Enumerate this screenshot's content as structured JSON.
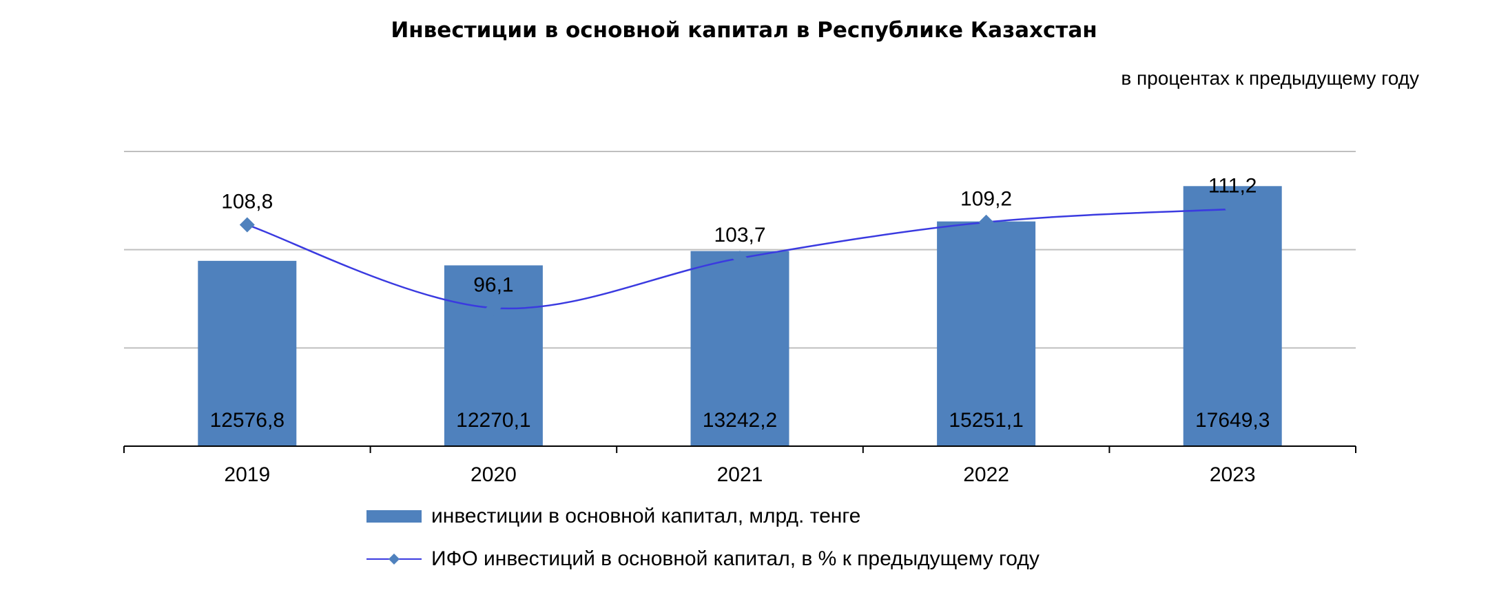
{
  "chart_data": {
    "type": "bar",
    "title": "Инвестиции в основной  капитал в Республике Казахстан",
    "subtitle": "в процентах к предыдущему году",
    "categories": [
      "2019",
      "2020",
      "2021",
      "2022",
      "2023"
    ],
    "series": [
      {
        "name": "инвестиции в основной капитал, млрд. тенге",
        "type": "bar",
        "values": [
          12576.8,
          12270.1,
          13242.2,
          15251.1,
          17649.3
        ],
        "labels": [
          "12576,8",
          "12270,1",
          "13242,2",
          "15251,1",
          "17649,3"
        ],
        "color": "#4F81BD"
      },
      {
        "name": "ИФО инвестиций в основной капитал, в % к предыдущему году",
        "type": "line",
        "marker": "diamond",
        "values": [
          108.8,
          96.1,
          103.7,
          109.2,
          111.2
        ],
        "labels": [
          "108,8",
          "96,1",
          "103,7",
          "109,2",
          "111,2"
        ],
        "color": "#4F81BD",
        "line_color": "#3A3AE0"
      }
    ],
    "bar_axis_range": [
      0,
      20000
    ],
    "line_axis_range": [
      75,
      120
    ],
    "grid": true,
    "legend_position": "bottom"
  }
}
